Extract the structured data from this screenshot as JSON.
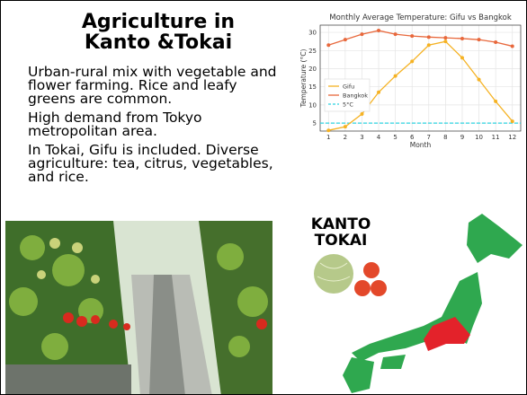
{
  "header": {
    "title_lines": [
      "Agriculture in",
      "Kanto &Tokai"
    ]
  },
  "paragraphs": [
    "Urban-rural mix with vegetable and flower farming. Rice and leafy greens are common.",
    "High demand from Tokyo metropolitan area.",
    "In Tokai, Gifu is included. Diverse agriculture: tea, citrus, vegetables, and rice."
  ],
  "map": {
    "labels": [
      "KANTO",
      "TOKAI"
    ]
  },
  "chart_data": {
    "type": "line",
    "title": "Monthly Average Temperature: Gifu vs Bangkok",
    "x_label": "Month",
    "y_label": "Temperature (°C)",
    "x": [
      1,
      2,
      3,
      4,
      5,
      6,
      7,
      8,
      9,
      10,
      11,
      12
    ],
    "series": [
      {
        "name": "Gifu",
        "color": "#f5b223",
        "values": [
          3,
          4,
          7.5,
          13.5,
          18,
          22,
          26.5,
          27.5,
          23,
          17,
          11,
          5.5
        ]
      },
      {
        "name": "Bangkok",
        "color": "#e8683c",
        "values": [
          26.5,
          28,
          29.5,
          30.5,
          29.5,
          29,
          28.7,
          28.5,
          28.3,
          28,
          27.3,
          26.2
        ]
      }
    ],
    "reference_line": {
      "name": "5°C",
      "value": 5,
      "color": "#2fd4e0"
    },
    "xlim": [
      0.5,
      12.5
    ],
    "xticks": [
      1,
      2,
      3,
      4,
      5,
      6,
      7,
      8,
      9,
      10,
      11,
      12
    ],
    "ylim": [
      2.8,
      32
    ],
    "yticks": [
      5,
      10,
      15,
      20,
      25,
      30
    ],
    "grid": true,
    "legend": "lower left"
  }
}
